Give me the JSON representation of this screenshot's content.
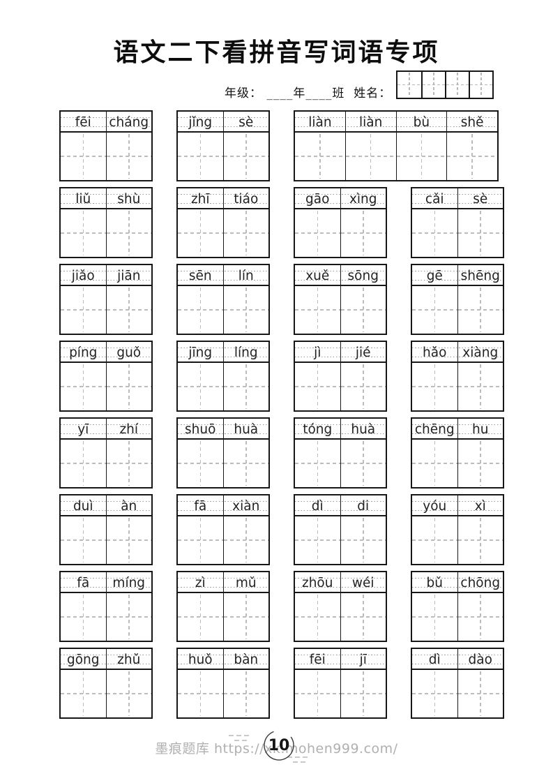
{
  "title": "语文二下看拼音写词语专项",
  "header": {
    "meta_text": "年级： ____年____班  姓名：",
    "name_grid_cells": 4
  },
  "worksheet": {
    "rows": [
      {
        "blocks": [
          [
            "fēi",
            "cháng"
          ],
          [
            "jǐng",
            "sè"
          ],
          [
            "liàn",
            "liàn",
            "bù",
            "shě"
          ]
        ]
      },
      {
        "blocks": [
          [
            "liǔ",
            "shù"
          ],
          [
            "zhī",
            "tiáo"
          ],
          [
            "gāo",
            "xìng"
          ],
          [
            "cǎi",
            "sè"
          ]
        ]
      },
      {
        "blocks": [
          [
            "jiǎo",
            "jiān"
          ],
          [
            "sēn",
            "lín"
          ],
          [
            "xuě",
            "sōng"
          ],
          [
            "gē",
            "shēng"
          ]
        ]
      },
      {
        "blocks": [
          [
            "píng",
            "guǒ"
          ],
          [
            "jīng",
            "líng"
          ],
          [
            "jì",
            "jié"
          ],
          [
            "hǎo",
            "xiàng"
          ]
        ]
      },
      {
        "blocks": [
          [
            "yī",
            "zhí"
          ],
          [
            "shuō",
            "huà"
          ],
          [
            "tóng",
            "huà"
          ],
          [
            "chēng",
            "hu"
          ]
        ]
      },
      {
        "blocks": [
          [
            "duì",
            "àn"
          ],
          [
            "fā",
            "xiàn"
          ],
          [
            "dì",
            "di"
          ],
          [
            "yóu",
            "xì"
          ]
        ]
      },
      {
        "blocks": [
          [
            "fā",
            "míng"
          ],
          [
            "zì",
            "mǔ"
          ],
          [
            "zhōu",
            "wéi"
          ],
          [
            "bǔ",
            "chōng"
          ]
        ]
      },
      {
        "blocks": [
          [
            "gōng",
            "zhǔ"
          ],
          [
            "huǒ",
            "bàn"
          ],
          [
            "fēi",
            "jī"
          ],
          [
            "dì",
            "dào"
          ]
        ]
      }
    ]
  },
  "footer": {
    "brand": "墨痕题库",
    "url": "https://xk.mohen999.com/",
    "page_number": "10"
  },
  "colors": {
    "line_black": "#161616",
    "dash_gray": "#bcbcbc",
    "dot_gray": "#9c9c9c",
    "footer_gray": "#b0b0b0"
  }
}
